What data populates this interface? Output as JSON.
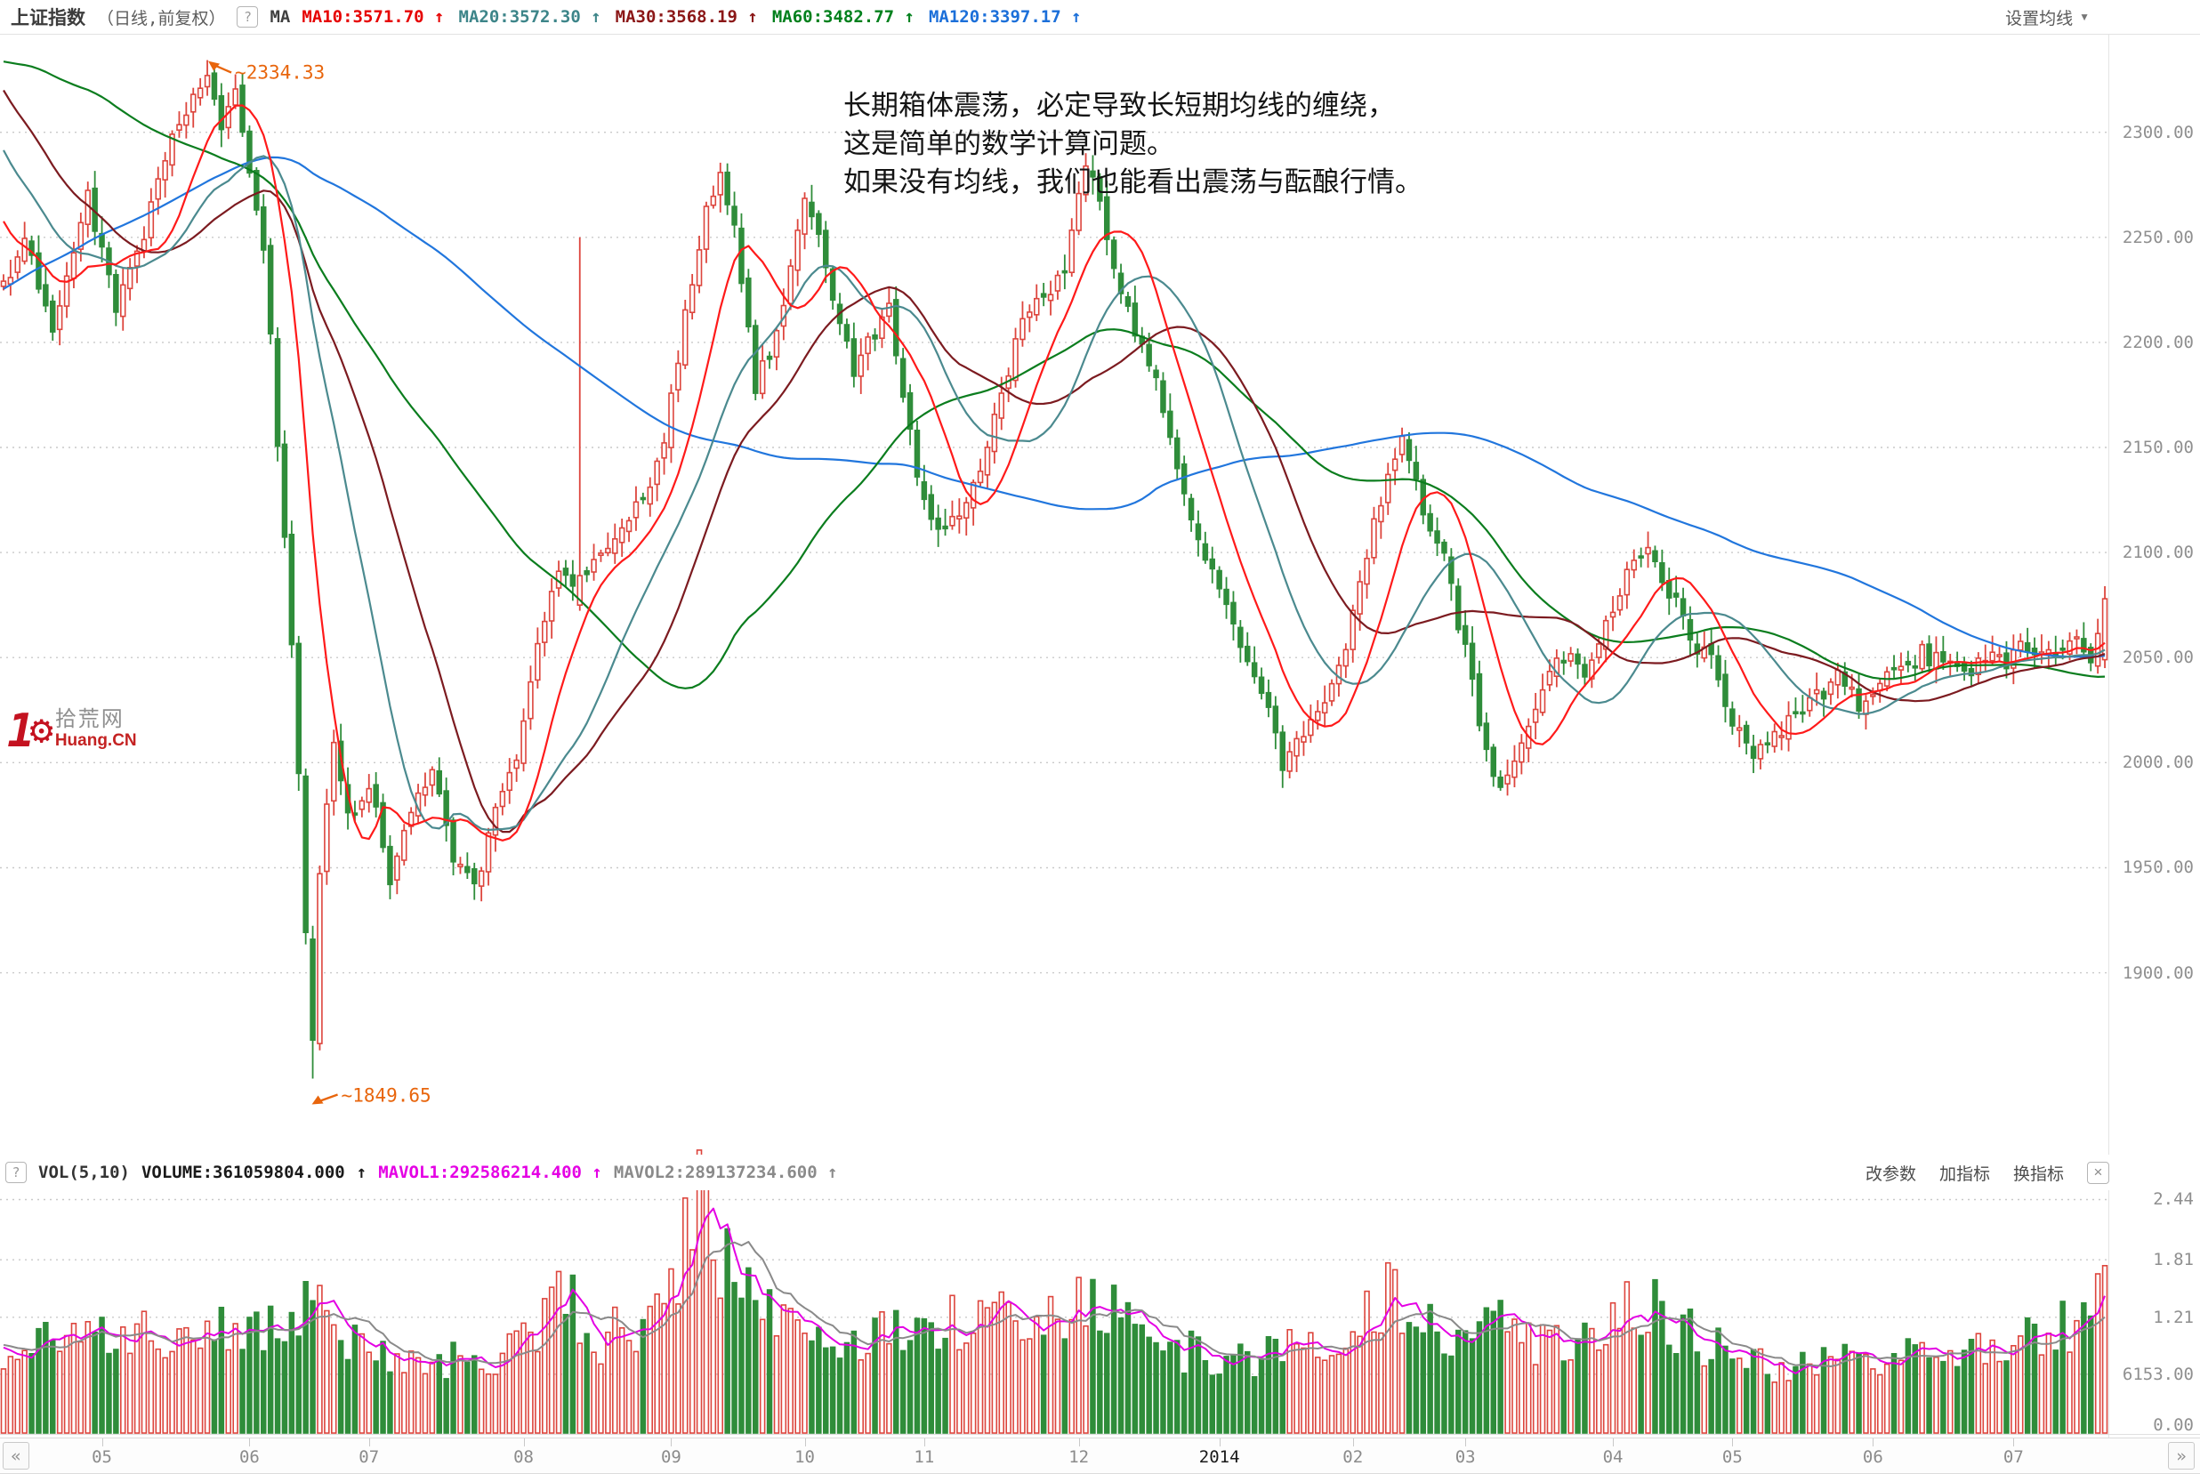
{
  "header": {
    "title": "上证指数",
    "subtitle": "（日线,前复权）",
    "help_icon": "?",
    "ma_group_label": "MA",
    "ma_items": [
      {
        "label": "MA10:3571.70",
        "arrow": "↑",
        "color": "#e60000"
      },
      {
        "label": "MA20:3572.30",
        "arrow": "↑",
        "color": "#3d8589"
      },
      {
        "label": "MA30:3568.19",
        "arrow": "↑",
        "color": "#8b1717"
      },
      {
        "label": "MA60:3482.77",
        "arrow": "↑",
        "color": "#00801c"
      },
      {
        "label": "MA120:3397.17",
        "arrow": "↑",
        "color": "#1b6fd9"
      }
    ],
    "settings_label": "设置均线",
    "settings_caret": "▼"
  },
  "annotation": {
    "lines": [
      "长期箱体震荡，必定导致长短期均线的缠绕，",
      "这是简单的数学计算问题。",
      "如果没有均线，我们也能看出震荡与酝酿行情。"
    ]
  },
  "watermark": {
    "number": "1",
    "gear": "⚙",
    "site": "拾荒网",
    "domain": "Huang.CN"
  },
  "markers": {
    "high": {
      "label": "~2334.33",
      "value": 2334.33,
      "index": 29,
      "color": "#e8650c"
    },
    "low": {
      "label": "~1849.65",
      "value": 1849.65,
      "index": 44,
      "color": "#e8650c"
    }
  },
  "price_axis": {
    "max": 2346,
    "min": 1816,
    "ticks": [
      {
        "label": "2300.00",
        "value": 2300
      },
      {
        "label": "2250.00",
        "value": 2250
      },
      {
        "label": "2200.00",
        "value": 2200
      },
      {
        "label": "2150.00",
        "value": 2150
      },
      {
        "label": "2100.00",
        "value": 2100
      },
      {
        "label": "2050.00",
        "value": 2050
      },
      {
        "label": "2000.00",
        "value": 2000
      },
      {
        "label": "1950.00",
        "value": 1950
      },
      {
        "label": "1900.00",
        "value": 1900
      }
    ]
  },
  "volume_header": {
    "help_icon": "?",
    "indicator": "VOL(5,10)",
    "volume_label": "VOLUME:361059804.000",
    "volume_arrow": "↑",
    "mavol1_label": "MAVOL1:292586214.400",
    "mavol1_arrow": "↑",
    "mavol1_color": "#e400e4",
    "mavol2_label": "MAVOL2:289137234.600",
    "mavol2_arrow": "↑",
    "mavol2_color": "#8a8a8a",
    "toolbar": {
      "edit_params": "改参数",
      "add_indicator": "加指标",
      "switch_indicator": "换指标",
      "close_icon": "×"
    }
  },
  "volume_axis": {
    "max": 2.5,
    "ticks": [
      {
        "label": "2.44",
        "value": 2.44
      },
      {
        "label": "1.81",
        "value": 1.81
      },
      {
        "label": "1.21",
        "value": 1.21
      },
      {
        "label": "6153.00",
        "value": 0.6153
      },
      {
        "label": "0.00",
        "value": 0
      }
    ]
  },
  "time_axis": {
    "prev_icon": "«",
    "next_icon": "»",
    "months": [
      {
        "label": "05",
        "index": 14
      },
      {
        "label": "06",
        "index": 35
      },
      {
        "label": "07",
        "index": 52
      },
      {
        "label": "08",
        "index": 74
      },
      {
        "label": "09",
        "index": 95
      },
      {
        "label": "10",
        "index": 114
      },
      {
        "label": "11",
        "index": 131
      },
      {
        "label": "12",
        "index": 153
      },
      {
        "label": "2014",
        "index": 173,
        "emphasized": true
      },
      {
        "label": "02",
        "index": 192
      },
      {
        "label": "03",
        "index": 208
      },
      {
        "label": "04",
        "index": 229
      },
      {
        "label": "05",
        "index": 246
      },
      {
        "label": "06",
        "index": 266
      },
      {
        "label": "07",
        "index": 286
      }
    ]
  },
  "chart_data": {
    "type": "candlestick",
    "title": "上证指数 日线 前复权 (2013-05 ~ 2014-07)",
    "n_candles": 300,
    "marked_high": 2334.33,
    "marked_low": 1849.65,
    "price_anchors": [
      [
        0,
        2228
      ],
      [
        3,
        2248
      ],
      [
        7,
        2208
      ],
      [
        12,
        2268
      ],
      [
        16,
        2218
      ],
      [
        20,
        2252
      ],
      [
        24,
        2295
      ],
      [
        29,
        2328
      ],
      [
        31,
        2298
      ],
      [
        33,
        2318
      ],
      [
        35,
        2282
      ],
      [
        37,
        2248
      ],
      [
        39,
        2152
      ],
      [
        41,
        2058
      ],
      [
        42,
        1996
      ],
      [
        43,
        1918
      ],
      [
        44,
        1868
      ],
      [
        45,
        1946
      ],
      [
        47,
        2008
      ],
      [
        49,
        1974
      ],
      [
        52,
        1992
      ],
      [
        55,
        1944
      ],
      [
        58,
        1976
      ],
      [
        61,
        1998
      ],
      [
        64,
        1952
      ],
      [
        67,
        1940
      ],
      [
        70,
        1976
      ],
      [
        73,
        2002
      ],
      [
        76,
        2056
      ],
      [
        79,
        2088
      ],
      [
        82,
        2088
      ],
      [
        85,
        2096
      ],
      [
        88,
        2116
      ],
      [
        91,
        2126
      ],
      [
        94,
        2152
      ],
      [
        97,
        2212
      ],
      [
        100,
        2262
      ],
      [
        102,
        2282
      ],
      [
        104,
        2256
      ],
      [
        107,
        2180
      ],
      [
        110,
        2202
      ],
      [
        112,
        2232
      ],
      [
        114,
        2268
      ],
      [
        116,
        2252
      ],
      [
        118,
        2222
      ],
      [
        121,
        2186
      ],
      [
        124,
        2206
      ],
      [
        126,
        2216
      ],
      [
        128,
        2176
      ],
      [
        130,
        2136
      ],
      [
        133,
        2108
      ],
      [
        136,
        2116
      ],
      [
        139,
        2136
      ],
      [
        142,
        2176
      ],
      [
        145,
        2210
      ],
      [
        148,
        2222
      ],
      [
        151,
        2236
      ],
      [
        154,
        2282
      ],
      [
        156,
        2270
      ],
      [
        158,
        2236
      ],
      [
        161,
        2206
      ],
      [
        164,
        2180
      ],
      [
        167,
        2140
      ],
      [
        170,
        2106
      ],
      [
        173,
        2086
      ],
      [
        176,
        2056
      ],
      [
        179,
        2036
      ],
      [
        182,
        2000
      ],
      [
        185,
        2016
      ],
      [
        188,
        2032
      ],
      [
        191,
        2056
      ],
      [
        194,
        2100
      ],
      [
        197,
        2140
      ],
      [
        199,
        2152
      ],
      [
        202,
        2120
      ],
      [
        205,
        2096
      ],
      [
        208,
        2052
      ],
      [
        211,
        2006
      ],
      [
        213,
        1986
      ],
      [
        216,
        2010
      ],
      [
        219,
        2036
      ],
      [
        222,
        2052
      ],
      [
        225,
        2044
      ],
      [
        228,
        2066
      ],
      [
        231,
        2088
      ],
      [
        234,
        2102
      ],
      [
        237,
        2082
      ],
      [
        240,
        2060
      ],
      [
        243,
        2048
      ],
      [
        246,
        2022
      ],
      [
        249,
        2004
      ],
      [
        252,
        2012
      ],
      [
        255,
        2022
      ],
      [
        258,
        2032
      ],
      [
        261,
        2040
      ],
      [
        264,
        2028
      ],
      [
        267,
        2038
      ],
      [
        270,
        2046
      ],
      [
        273,
        2052
      ],
      [
        276,
        2046
      ],
      [
        279,
        2042
      ],
      [
        282,
        2052
      ],
      [
        285,
        2048
      ],
      [
        288,
        2056
      ],
      [
        291,
        2052
      ],
      [
        294,
        2058
      ],
      [
        297,
        2052
      ],
      [
        299,
        2076
      ]
    ],
    "prehistory_closes_for_ma": [
      [
        -120,
        1990
      ],
      [
        -100,
        2060
      ],
      [
        -80,
        2160
      ],
      [
        -60,
        2260
      ],
      [
        -45,
        2360
      ],
      [
        -30,
        2400
      ],
      [
        -18,
        2350
      ],
      [
        -8,
        2280
      ],
      [
        -1,
        2235
      ]
    ],
    "specials": [
      {
        "i": 29,
        "close": 2327,
        "high": 2334.33
      },
      {
        "i": 44,
        "open": 1916,
        "close": 1868,
        "low": 1849.65
      },
      {
        "i": 82,
        "open": 2075,
        "close": 2089,
        "high": 2250
      },
      {
        "i": 299,
        "open": 2049,
        "close": 2078,
        "high": 2084,
        "low": 2045
      }
    ],
    "volume_anchors": [
      [
        0,
        0.85
      ],
      [
        10,
        0.95
      ],
      [
        20,
        1.05
      ],
      [
        29,
        1.15
      ],
      [
        35,
        1.0
      ],
      [
        40,
        1.2
      ],
      [
        44,
        1.3
      ],
      [
        48,
        1.0
      ],
      [
        55,
        0.8
      ],
      [
        62,
        0.75
      ],
      [
        70,
        0.85
      ],
      [
        76,
        1.1
      ],
      [
        79,
        1.5
      ],
      [
        82,
        1.25
      ],
      [
        85,
        1.0
      ],
      [
        90,
        1.1
      ],
      [
        95,
        1.5
      ],
      [
        98,
        2.3
      ],
      [
        100,
        2.44
      ],
      [
        101,
        2.0
      ],
      [
        103,
        1.8
      ],
      [
        105,
        1.6
      ],
      [
        108,
        1.3
      ],
      [
        112,
        1.3
      ],
      [
        116,
        1.15
      ],
      [
        120,
        1.0
      ],
      [
        125,
        1.1
      ],
      [
        130,
        1.05
      ],
      [
        135,
        1.15
      ],
      [
        140,
        1.25
      ],
      [
        145,
        1.3
      ],
      [
        150,
        1.2
      ],
      [
        154,
        1.5
      ],
      [
        158,
        1.25
      ],
      [
        163,
        1.0
      ],
      [
        168,
        0.85
      ],
      [
        173,
        0.8
      ],
      [
        178,
        0.75
      ],
      [
        182,
        0.9
      ],
      [
        188,
        0.8
      ],
      [
        193,
        1.2
      ],
      [
        197,
        1.45
      ],
      [
        202,
        1.2
      ],
      [
        207,
        1.0
      ],
      [
        212,
        1.15
      ],
      [
        217,
        0.95
      ],
      [
        222,
        0.9
      ],
      [
        228,
        1.0
      ],
      [
        233,
        1.4
      ],
      [
        238,
        1.1
      ],
      [
        243,
        0.9
      ],
      [
        248,
        0.8
      ],
      [
        253,
        0.7
      ],
      [
        258,
        0.75
      ],
      [
        263,
        0.8
      ],
      [
        268,
        0.75
      ],
      [
        273,
        0.9
      ],
      [
        278,
        0.85
      ],
      [
        283,
        0.8
      ],
      [
        288,
        0.95
      ],
      [
        293,
        1.1
      ],
      [
        297,
        1.35
      ],
      [
        299,
        1.45
      ]
    ],
    "ma_periods": [
      120,
      60,
      30,
      20,
      10
    ],
    "ma_colors": {
      "120": "#2176dd",
      "60": "#0b7d1e",
      "30": "#7c1b20",
      "20": "#4b8a8f",
      "10": "#ff1a1a"
    },
    "mavol_periods": [
      5,
      10
    ],
    "mavol_colors": [
      "#e400e4",
      "#8a8a8a"
    ],
    "candle_up": {
      "stroke": "#dd453d",
      "fill": "#ffffff"
    },
    "candle_down": {
      "stroke": "#2f8d3a",
      "fill": "#2f8d3a"
    },
    "grid_color": "#c9c9c9",
    "marker_color": "#e8650c"
  }
}
